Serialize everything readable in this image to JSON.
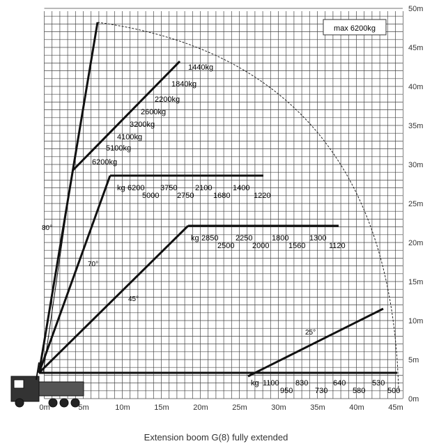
{
  "caption": "Extension boom G(8) fully extended",
  "max_label": "max 6200kg",
  "y_axis_ticks": [
    "0m",
    "5m",
    "10m",
    "15m",
    "20m",
    "25m",
    "30m",
    "35m",
    "40m",
    "45m",
    "50m"
  ],
  "x_axis_ticks": [
    "0m",
    "5m",
    "10m",
    "15m",
    "20m",
    "25m",
    "30m",
    "35m",
    "40m",
    "45m"
  ],
  "angle_labels": [
    "80°",
    "70°",
    "45°",
    "25°"
  ],
  "jib_loads_kg": [
    "1440kg",
    "1840kg",
    "2200kg",
    "2600kg",
    "3200kg",
    "4100kg",
    "5100kg",
    "6200kg"
  ],
  "boom_70": {
    "unit": "kg",
    "row1": [
      "6200",
      "3750",
      "2100",
      "1400"
    ],
    "row2": [
      "5000",
      "2750",
      "1680",
      "1220"
    ]
  },
  "boom_45": {
    "unit": "kg",
    "row1": [
      "2850",
      "2250",
      "1800",
      "1300"
    ],
    "row2": [
      "2500",
      "2000",
      "1560",
      "1120"
    ]
  },
  "boom_0": {
    "unit": "kg",
    "row1": [
      "1100",
      "830",
      "640",
      "530"
    ],
    "row2": [
      "950",
      "730",
      "580",
      "500"
    ]
  }
}
